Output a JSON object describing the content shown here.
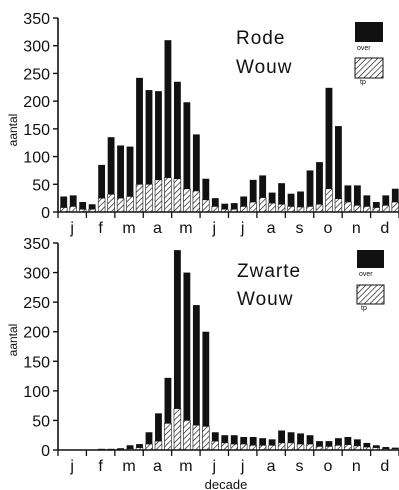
{
  "chart_data": [
    {
      "type": "bar",
      "stacked": true,
      "title": "Rode Wouw",
      "ylabel": "aantal",
      "xlabel": "",
      "ylim": [
        0,
        350
      ],
      "yticks": [
        0,
        50,
        100,
        150,
        200,
        250,
        300,
        350
      ],
      "month_labels": [
        "j",
        "f",
        "m",
        "a",
        "m",
        "j",
        "j",
        "a",
        "s",
        "o",
        "n",
        "d"
      ],
      "legend": [
        {
          "label": "over",
          "pattern": "solid",
          "color": "#111111"
        },
        {
          "label": "tp",
          "pattern": "hatched",
          "color": "#111111"
        }
      ],
      "decades": 36,
      "total": [
        28,
        30,
        18,
        14,
        85,
        135,
        120,
        118,
        242,
        220,
        218,
        310,
        235,
        198,
        140,
        60,
        25,
        15,
        16,
        28,
        58,
        66,
        35,
        52,
        33,
        37,
        75,
        90,
        224,
        155,
        48,
        48,
        30,
        18,
        30,
        42
      ],
      "tp": [
        8,
        10,
        5,
        5,
        25,
        32,
        25,
        28,
        50,
        50,
        58,
        62,
        60,
        42,
        38,
        22,
        10,
        5,
        5,
        10,
        18,
        26,
        16,
        14,
        10,
        9,
        10,
        14,
        42,
        24,
        18,
        12,
        10,
        8,
        12,
        18
      ]
    },
    {
      "type": "bar",
      "stacked": true,
      "title": "Zwarte Wouw",
      "ylabel": "aantal",
      "xlabel": "decade",
      "ylim": [
        0,
        350
      ],
      "yticks": [
        0,
        50,
        100,
        150,
        200,
        250,
        300,
        350
      ],
      "month_labels": [
        "j",
        "f",
        "m",
        "a",
        "m",
        "j",
        "j",
        "a",
        "s",
        "o",
        "n",
        "d"
      ],
      "legend": [
        {
          "label": "over",
          "pattern": "solid",
          "color": "#111111"
        },
        {
          "label": "tp",
          "pattern": "hatched",
          "color": "#111111"
        }
      ],
      "decades": 36,
      "total": [
        0,
        0,
        0,
        0,
        2,
        2,
        3,
        8,
        10,
        30,
        62,
        122,
        338,
        300,
        245,
        200,
        30,
        25,
        25,
        22,
        22,
        20,
        18,
        33,
        30,
        28,
        25,
        15,
        15,
        20,
        22,
        18,
        12,
        8,
        5,
        4
      ],
      "tp": [
        0,
        0,
        0,
        0,
        1,
        1,
        1,
        2,
        4,
        10,
        15,
        45,
        70,
        50,
        42,
        40,
        15,
        12,
        10,
        10,
        8,
        8,
        8,
        12,
        12,
        10,
        10,
        6,
        6,
        8,
        9,
        7,
        5,
        4,
        2,
        2
      ]
    }
  ]
}
